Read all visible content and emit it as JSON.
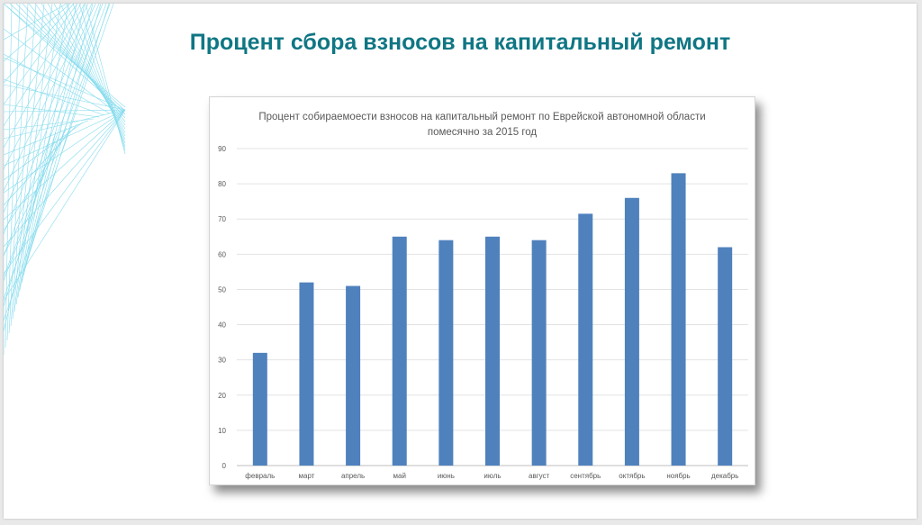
{
  "page": {
    "title": "Процент сбора взносов на капитальный ремонт"
  },
  "colors": {
    "title": "#0f7684",
    "bar": "#4f81bd",
    "decor_lines": "#5fd0e8",
    "gridline": "#e3e3e3",
    "axis_text": "#595959"
  },
  "chart_data": {
    "type": "bar",
    "title_lines": [
      "Процент собираемоести  взносов на капитальный ремонт по Еврейской автономной области",
      "помесячно за 2015 год"
    ],
    "categories": [
      "февраль",
      "март",
      "апрель",
      "май",
      "июнь",
      "июль",
      "август",
      "сентябрь",
      "октябрь",
      "ноябрь",
      "декабрь"
    ],
    "values": [
      32,
      52,
      51,
      65,
      64,
      65,
      64,
      71.5,
      76,
      83,
      62
    ],
    "xlabel": "",
    "ylabel": "",
    "ylim": [
      0,
      90
    ],
    "yticks": [
      0,
      10,
      20,
      30,
      40,
      50,
      60,
      70,
      80,
      90
    ],
    "grid": true,
    "legend": "none"
  }
}
